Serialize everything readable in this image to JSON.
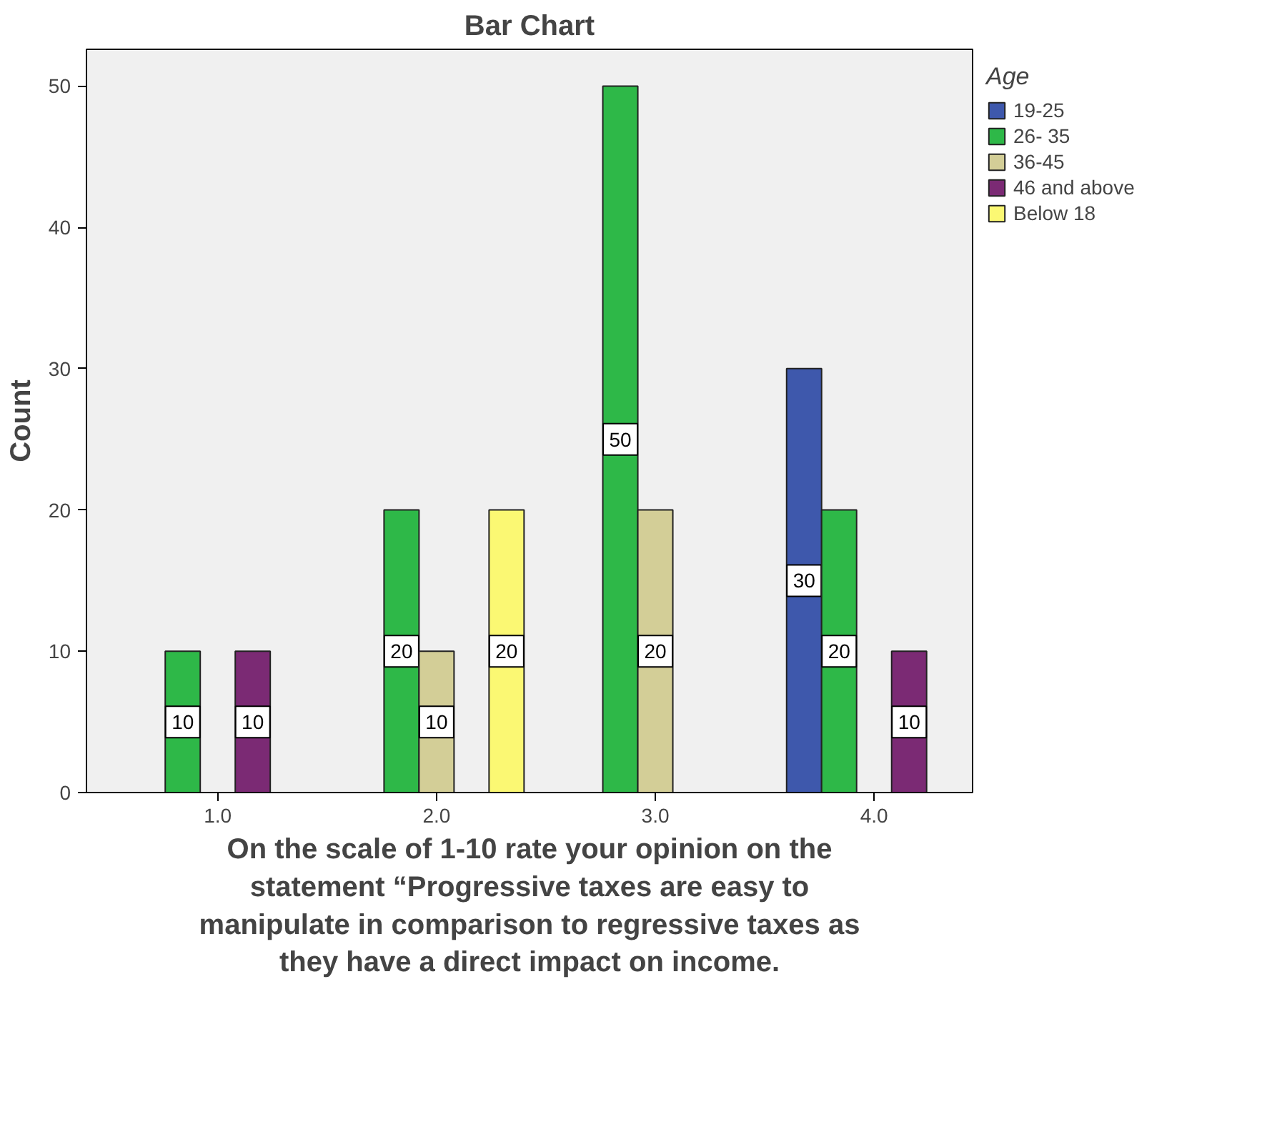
{
  "chart_data": {
    "type": "bar",
    "title": "Bar Chart",
    "xlabel": "On the scale of 1-10 rate your opinion on the statement “Progressive taxes are easy to manipulate in comparison to regressive taxes as they have a direct impact on income.",
    "ylabel": "Count",
    "legend_title": "Age",
    "categories": [
      "1.0",
      "2.0",
      "3.0",
      "4.0"
    ],
    "series": [
      {
        "name": "19-25",
        "color": "#3e58ac",
        "values": [
          null,
          null,
          null,
          30
        ]
      },
      {
        "name": "26- 35",
        "color": "#2eb848",
        "values": [
          10,
          20,
          50,
          20
        ]
      },
      {
        "name": "36-45",
        "color": "#d3ce97",
        "values": [
          null,
          10,
          20,
          null
        ]
      },
      {
        "name": "46 and above",
        "color": "#7b2a74",
        "values": [
          10,
          null,
          null,
          10
        ]
      },
      {
        "name": "Below 18",
        "color": "#fbf873",
        "values": [
          null,
          20,
          null,
          null
        ]
      }
    ],
    "ylim": [
      0,
      52.6
    ],
    "yticks": [
      0,
      10,
      20,
      30,
      40,
      50
    ],
    "grid": false,
    "legend": "right",
    "data_labels": true
  }
}
